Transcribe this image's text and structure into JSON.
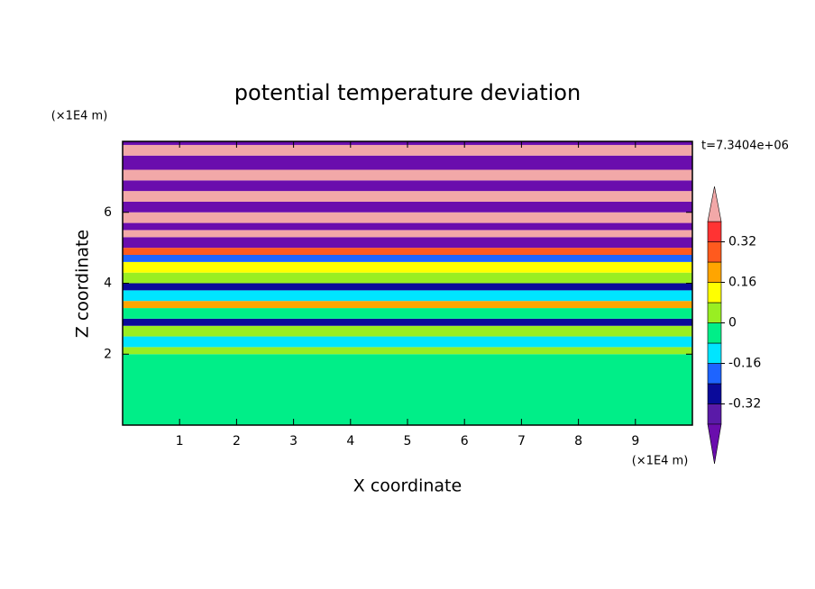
{
  "chart_data": {
    "type": "contour",
    "title": "potential temperature deviation",
    "x_label": "X coordinate",
    "y_label": "Z coordinate",
    "x_unit": "(×1E4 m)",
    "y_unit": "(×1E4 m)",
    "time_label": "t=7.3404e+06",
    "xlim": [
      0,
      10
    ],
    "ylim": [
      0,
      8
    ],
    "xticks": [
      1,
      2,
      3,
      4,
      5,
      6,
      7,
      8,
      9
    ],
    "yticks": [
      2,
      4,
      6
    ],
    "levels": [
      -0.4,
      -0.32,
      -0.24,
      -0.16,
      -0.08,
      0,
      0.08,
      0.16,
      0.24,
      0.32,
      0.4
    ],
    "colors": [
      "#6a0dad",
      "#5a1aa8",
      "#0a0a9a",
      "#1e64ff",
      "#00e5ff",
      "#00ee88",
      "#99ee22",
      "#ffff00",
      "#ffa500",
      "#ff5a1e",
      "#ff3333",
      "#f2a8a8"
    ],
    "colorbar_ticks": [
      -0.32,
      -0.16,
      0,
      0.16,
      0.32
    ],
    "field": {
      "z_edges": [
        0,
        2.0,
        2.2,
        2.5,
        2.8,
        3.0,
        3.3,
        3.5,
        3.8,
        4.0,
        4.3,
        4.6,
        4.8,
        5.0,
        5.3,
        5.5,
        5.7,
        6.0,
        6.3,
        6.6,
        6.9,
        7.2,
        7.6,
        7.9,
        8.0
      ],
      "values": [
        -0.04,
        0.04,
        -0.12,
        0.04,
        -0.28,
        -0.04,
        0.2,
        -0.12,
        -0.28,
        0.04,
        0.12,
        -0.2,
        0.28,
        -0.45,
        0.45,
        -0.45,
        0.45,
        -0.45,
        0.45,
        -0.45,
        0.45,
        -0.45,
        0.45,
        -0.45
      ]
    }
  }
}
